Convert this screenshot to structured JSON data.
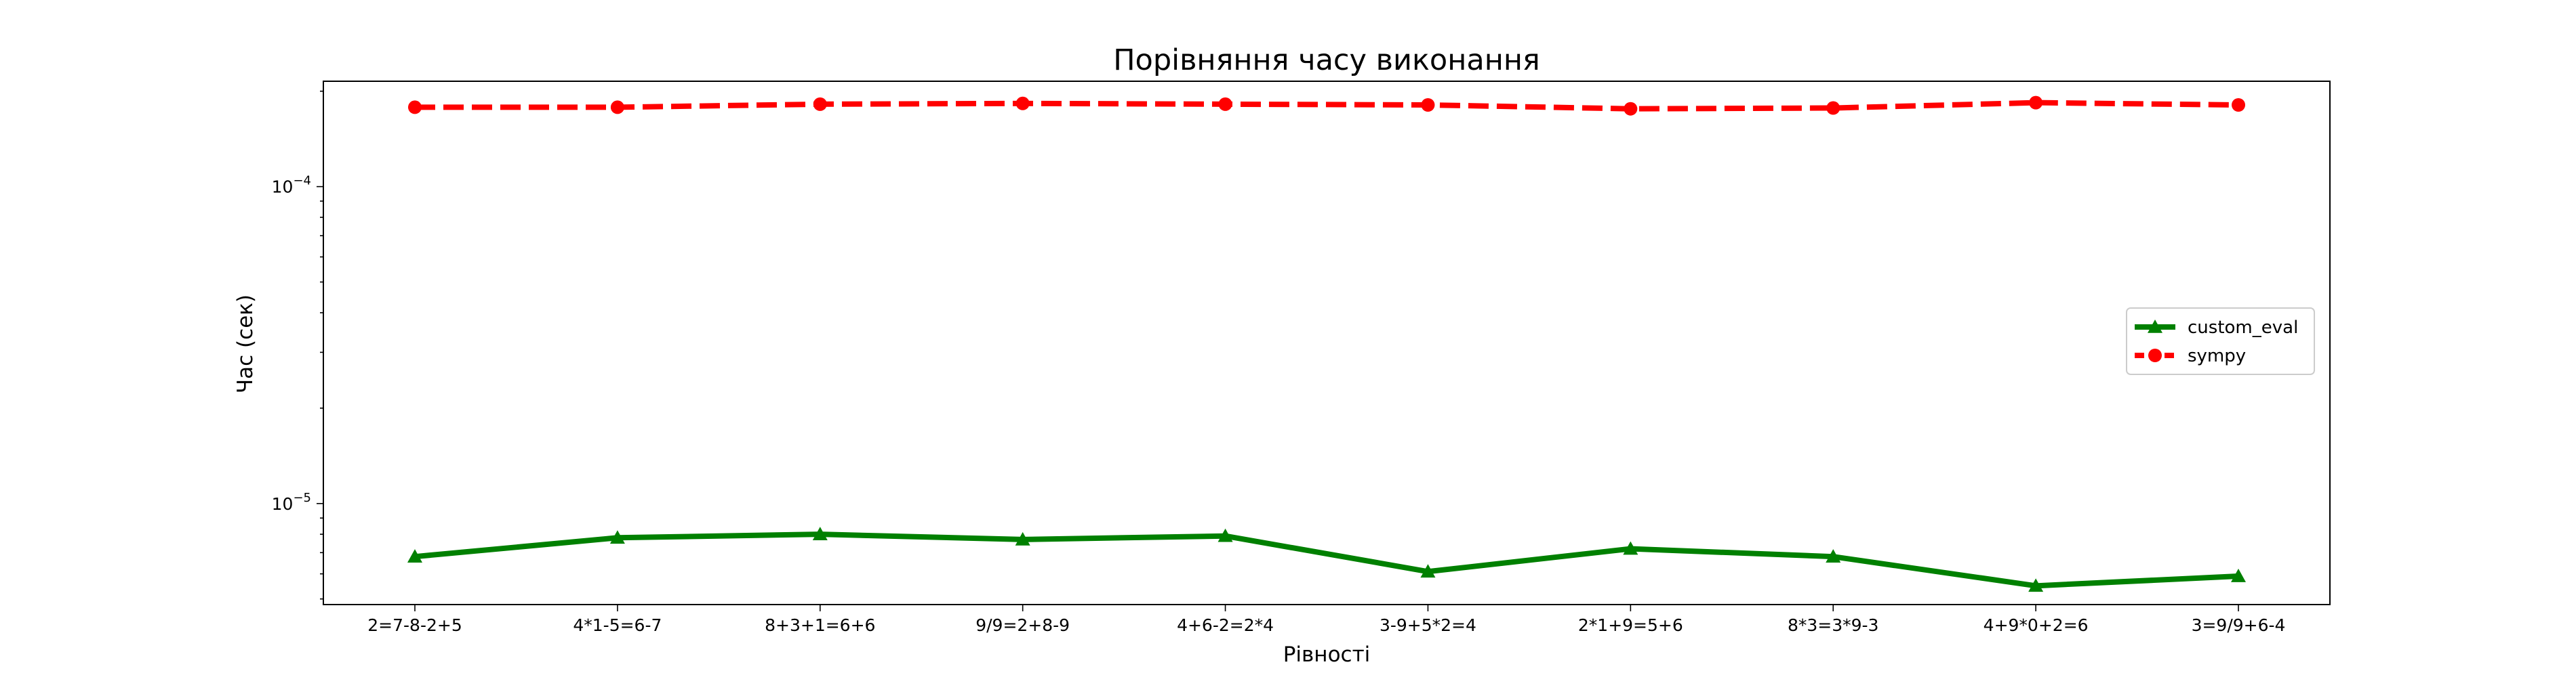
{
  "chart_data": {
    "type": "line",
    "title": "Порівняння часу виконання",
    "xlabel": "Рівності",
    "ylabel": "Час (сек)",
    "yscale": "log",
    "ylim": [
      4.8e-06,
      0.000215
    ],
    "y_ticks": [
      {
        "value": 0.0001,
        "base": "10",
        "exp": "−4"
      },
      {
        "value": 1e-05,
        "base": "10",
        "exp": "−5"
      }
    ],
    "categories": [
      "2=7-8-2+5",
      "4*1-5=6-7",
      "8+3+1=6+6",
      "9/9=2+8-9",
      "4+6-2=2*4",
      "3-9+5*2=4",
      "2*1+9=5+6",
      "8*3=3*9-3",
      "4+9*0+2=6",
      "3=9/9+6-4"
    ],
    "series": [
      {
        "name": "custom_eval",
        "color": "#008000",
        "marker": "triangle",
        "linestyle": "solid",
        "values": [
          6.8e-06,
          7.8e-06,
          8e-06,
          7.7e-06,
          7.9e-06,
          6.1e-06,
          7.2e-06,
          6.8e-06,
          5.5e-06,
          5.9e-06
        ]
      },
      {
        "name": "sympy",
        "color": "#ff0000",
        "marker": "circle",
        "linestyle": "dashed",
        "values": [
          0.000178,
          0.000178,
          0.000182,
          0.000183,
          0.000182,
          0.000181,
          0.000176,
          0.000177,
          0.000184,
          0.000181
        ]
      }
    ],
    "legend": "center-right",
    "grid": false
  }
}
